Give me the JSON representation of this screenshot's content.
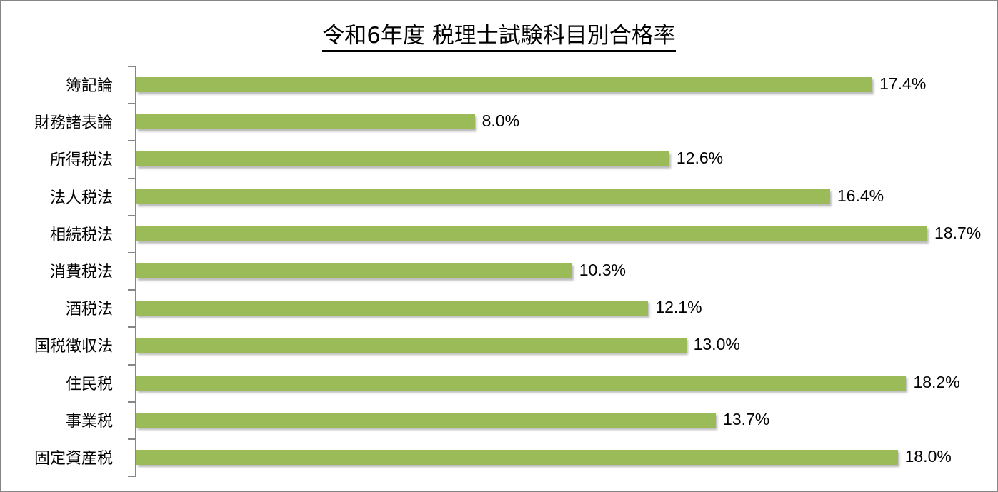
{
  "chart_data": {
    "type": "bar",
    "orientation": "horizontal",
    "title": "令和6年度 税理士試験科目別合格率",
    "xlabel": "",
    "ylabel": "",
    "categories": [
      "簿記論",
      "財務諸表論",
      "所得税法",
      "法人税法",
      "相続税法",
      "消費税法",
      "酒税法",
      "国税徴収法",
      "住民税",
      "事業税",
      "固定資産税"
    ],
    "values": [
      17.4,
      8.0,
      12.6,
      16.4,
      18.7,
      10.3,
      12.1,
      13.0,
      18.2,
      13.7,
      18.0
    ],
    "value_labels": [
      "17.4%",
      "8.0%",
      "12.6%",
      "16.4%",
      "18.7%",
      "10.3%",
      "12.1%",
      "13.0%",
      "18.2%",
      "13.7%",
      "18.0%"
    ],
    "unit": "%",
    "xlim": [
      0,
      20
    ],
    "grid": false,
    "legend": null,
    "bar_color": "#9bbb59"
  }
}
